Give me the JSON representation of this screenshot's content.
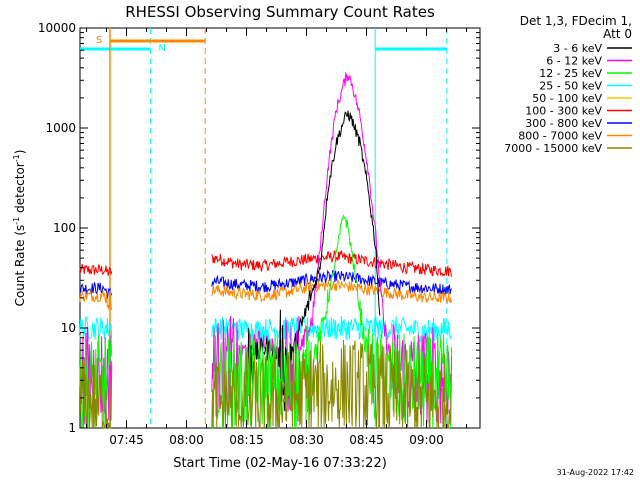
{
  "chart_data": {
    "type": "line",
    "title": "RHESSI Observing Summary Count Rates",
    "xlabel": "Start Time (02-May-16 07:33:22)",
    "ylabel_main": "Count Rate (s",
    "ylabel_sup1": "-1",
    "ylabel_mid": " detector",
    "ylabel_sup2": "-1",
    "ylabel_end": ")",
    "xlim_minutes": [
      0,
      100
    ],
    "ylim": [
      1,
      10000
    ],
    "yscale": "log",
    "yticks": [
      {
        "value": 1,
        "label": "1"
      },
      {
        "value": 10,
        "label": "10"
      },
      {
        "value": 100,
        "label": "100"
      },
      {
        "value": 1000,
        "label": "1000"
      },
      {
        "value": 10000,
        "label": "10000"
      }
    ],
    "xticks": [
      {
        "minute": 11.63,
        "label": "07:45"
      },
      {
        "minute": 26.63,
        "label": "08:00"
      },
      {
        "minute": 41.63,
        "label": "08:15"
      },
      {
        "minute": 56.63,
        "label": "08:30"
      },
      {
        "minute": 71.63,
        "label": "08:45"
      },
      {
        "minute": 86.63,
        "label": "09:00"
      }
    ],
    "legend_header": [
      "Det 1,3, FDecim 1,",
      "Att 0"
    ],
    "legend": [
      {
        "name": "3 - 6 keV",
        "color": "#000000"
      },
      {
        "name": "6 - 12 keV",
        "color": "#ff00ff"
      },
      {
        "name": "12 - 25 keV",
        "color": "#00ff00"
      },
      {
        "name": "25 - 50 keV",
        "color": "#00ffff"
      },
      {
        "name": "50 - 100 keV",
        "color": "#ffcc00"
      },
      {
        "name": "100 - 300 keV",
        "color": "#ff0000"
      },
      {
        "name": "300 - 800 keV",
        "color": "#0000ff"
      },
      {
        "name": "800 - 7000 keV",
        "color": "#ff8800"
      },
      {
        "name": "7000 - 15000 keV",
        "color": "#888800"
      }
    ],
    "saa": {
      "label": "S",
      "start_minute": 7.5,
      "end_minute": 31.3,
      "color": "#ff8800"
    },
    "night": {
      "label": "N",
      "intervals": [
        [
          0,
          17.6
        ],
        [
          73.8,
          91.7
        ]
      ],
      "color": "#00ffff"
    },
    "series": [
      {
        "name": "100 - 300 keV",
        "color": "#ff0000",
        "points": [
          [
            0,
            38
          ],
          [
            6,
            38
          ],
          [
            7,
            36
          ],
          [
            34,
            50
          ],
          [
            40,
            43
          ],
          [
            46,
            42
          ],
          [
            52,
            46
          ],
          [
            58,
            49
          ],
          [
            64,
            52
          ],
          [
            70,
            48
          ],
          [
            76,
            44
          ],
          [
            82,
            40
          ],
          [
            88,
            38
          ],
          [
            94,
            37
          ],
          [
            97,
            37
          ]
        ]
      },
      {
        "name": "300 - 800 keV",
        "color": "#0000ff",
        "points": [
          [
            0,
            25
          ],
          [
            6,
            25
          ],
          [
            7,
            22
          ],
          [
            34,
            29
          ],
          [
            40,
            27
          ],
          [
            46,
            26
          ],
          [
            52,
            28
          ],
          [
            58,
            31
          ],
          [
            64,
            33
          ],
          [
            70,
            31
          ],
          [
            76,
            28
          ],
          [
            82,
            26
          ],
          [
            88,
            25
          ],
          [
            94,
            24
          ],
          [
            97,
            24
          ]
        ]
      },
      {
        "name": "800 - 7000 keV",
        "color": "#ff8800",
        "points": [
          [
            0,
            21
          ],
          [
            6,
            21
          ],
          [
            7,
            19
          ],
          [
            34,
            24
          ],
          [
            40,
            22
          ],
          [
            46,
            21
          ],
          [
            52,
            23
          ],
          [
            58,
            26
          ],
          [
            64,
            27
          ],
          [
            70,
            25
          ],
          [
            76,
            23
          ],
          [
            82,
            21
          ],
          [
            88,
            20
          ],
          [
            94,
            20
          ],
          [
            97,
            20
          ]
        ]
      },
      {
        "name": "25 - 50 keV",
        "color": "#00ffff",
        "points": [
          [
            0,
            10
          ],
          [
            7,
            10
          ],
          [
            34,
            10
          ],
          [
            44,
            9.5
          ],
          [
            52,
            10
          ],
          [
            58,
            10
          ],
          [
            64,
            10
          ],
          [
            72,
            10
          ],
          [
            78,
            10
          ],
          [
            86,
            9.5
          ],
          [
            97,
            10
          ]
        ]
      },
      {
        "name": "6 - 12 keV",
        "color": "#ff00ff",
        "points": [
          [
            0,
            3.4
          ],
          [
            7,
            3.4
          ],
          [
            34,
            4.0
          ],
          [
            38,
            4.3
          ],
          [
            42,
            6.5
          ],
          [
            46,
            7.5
          ],
          [
            50,
            5.0
          ],
          [
            54,
            4.2
          ],
          [
            58,
            12
          ],
          [
            60,
            60
          ],
          [
            62,
            400
          ],
          [
            64,
            1500
          ],
          [
            66,
            2800
          ],
          [
            67,
            3500
          ],
          [
            68,
            2800
          ],
          [
            70,
            1300
          ],
          [
            72,
            400
          ],
          [
            74,
            80
          ],
          [
            76,
            10
          ],
          [
            78,
            4
          ],
          [
            82,
            3.4
          ],
          [
            97,
            3.4
          ]
        ]
      },
      {
        "name": "3 - 6 keV",
        "color": "#000000",
        "points": [
          [
            42,
            4.5
          ],
          [
            46,
            6.5
          ],
          [
            50,
            5
          ],
          [
            52,
            4
          ],
          [
            60,
            40
          ],
          [
            62,
            250
          ],
          [
            64,
            700
          ],
          [
            66,
            1200
          ],
          [
            67,
            1400
          ],
          [
            68,
            1200
          ],
          [
            70,
            700
          ],
          [
            72,
            250
          ],
          [
            74,
            60
          ],
          [
            75,
            12
          ]
        ]
      },
      {
        "name": "12 - 25 keV",
        "color": "#00ff00",
        "points": [
          [
            0,
            2.7
          ],
          [
            7,
            2.7
          ],
          [
            34,
            2.8
          ],
          [
            56,
            2.8
          ],
          [
            60,
            8
          ],
          [
            63,
            30
          ],
          [
            65,
            90
          ],
          [
            66,
            140
          ],
          [
            67,
            100
          ],
          [
            69,
            30
          ],
          [
            71,
            8
          ],
          [
            73,
            3
          ],
          [
            80,
            2.8
          ],
          [
            97,
            2.8
          ]
        ]
      },
      {
        "name": "7000 - 15000 keV",
        "color": "#888800",
        "points": [
          [
            0,
            1.7
          ],
          [
            7,
            1.7
          ],
          [
            34,
            1.8
          ],
          [
            48,
            1.8
          ],
          [
            58,
            2.3
          ],
          [
            66,
            2.6
          ],
          [
            74,
            2.4
          ],
          [
            82,
            1.9
          ],
          [
            97,
            1.8
          ]
        ]
      }
    ]
  },
  "timestamp": "31-Aug-2022 17:42"
}
